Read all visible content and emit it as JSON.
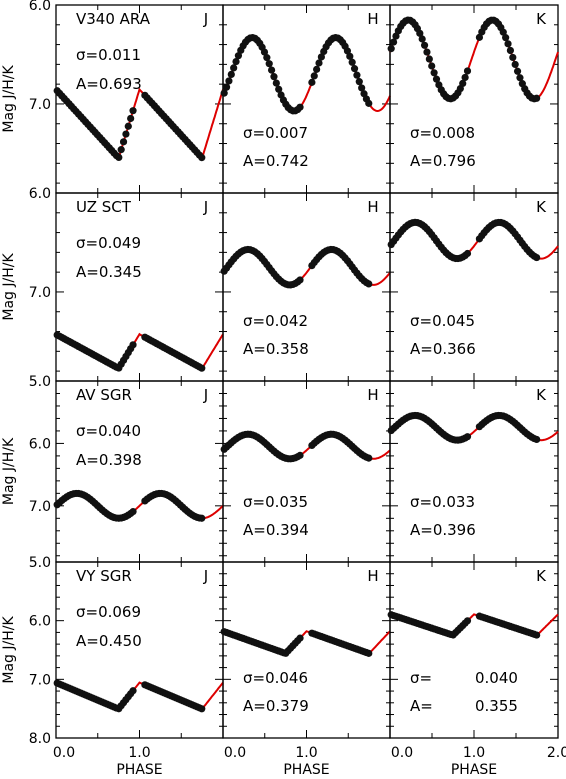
{
  "chart_data": {
    "type": "scatter",
    "layout": {
      "rows": 4,
      "cols": 3
    },
    "xlabel": "PHASE",
    "ylabel": "Mag J/H/K",
    "xlim": [
      0.0,
      2.0
    ],
    "xticks": [
      0.0,
      1.0,
      2.0
    ],
    "x_tick_labels": [
      "0.0",
      "1.0",
      "2.0"
    ],
    "y_axis_inverted": true,
    "fit_color": "#dd0000",
    "point_color": "#111111",
    "rows": [
      {
        "star": "V340 ARA",
        "ylim": [
          6.0,
          7.9
        ],
        "yticks": [
          6.0,
          7.0
        ],
        "y_tick_labels": [
          "6.0",
          "7.0"
        ],
        "panels": [
          {
            "band": "J",
            "sigma": "σ=0.011",
            "amp": "A=0.693",
            "curve": {
              "mean": 7.2,
              "amp": 0.693,
              "shape": "saw",
              "phase0": 0.0
            }
          },
          {
            "band": "H",
            "sigma": "σ=0.007",
            "amp": "A=0.742",
            "curve": {
              "mean": 6.7,
              "amp": 0.742,
              "shape": "sine",
              "phase0": 0.35
            }
          },
          {
            "band": "K",
            "sigma": "σ=0.008",
            "amp": "A=0.796",
            "curve": {
              "mean": 6.55,
              "amp": 0.796,
              "shape": "sine",
              "phase0": 0.22
            }
          }
        ]
      },
      {
        "star": "UZ SCT",
        "ylim": [
          6.0,
          7.9
        ],
        "yticks": [
          6.0,
          7.0
        ],
        "y_tick_labels": [
          "6.0",
          "7.0"
        ],
        "panels": [
          {
            "band": "J",
            "sigma": "σ=0.049",
            "amp": "A=0.345",
            "curve": {
              "mean": 7.6,
              "amp": 0.345,
              "shape": "saw",
              "phase0": 0.0
            }
          },
          {
            "band": "H",
            "sigma": "σ=0.042",
            "amp": "A=0.358",
            "curve": {
              "mean": 6.75,
              "amp": 0.358,
              "shape": "sine",
              "phase0": 0.3
            }
          },
          {
            "band": "K",
            "sigma": "σ=0.045",
            "amp": "A=0.366",
            "curve": {
              "mean": 6.48,
              "amp": 0.366,
              "shape": "sine",
              "phase0": 0.3
            }
          }
        ]
      },
      {
        "star": "AV SGR",
        "ylim": [
          5.0,
          7.9
        ],
        "yticks": [
          5.0,
          6.0,
          7.0
        ],
        "y_tick_labels": [
          "5.0",
          "6.0",
          "7.0"
        ],
        "panels": [
          {
            "band": "J",
            "sigma": "σ=0.040",
            "amp": "A=0.398",
            "curve": {
              "mean": 7.0,
              "amp": 0.398,
              "shape": "sine",
              "phase0": 0.25
            }
          },
          {
            "band": "H",
            "sigma": "σ=0.035",
            "amp": "A=0.394",
            "curve": {
              "mean": 6.05,
              "amp": 0.394,
              "shape": "sine",
              "phase0": 0.3
            }
          },
          {
            "band": "K",
            "sigma": "σ=0.033",
            "amp": "A=0.396",
            "curve": {
              "mean": 5.75,
              "amp": 0.396,
              "shape": "sine",
              "phase0": 0.3
            }
          }
        ]
      },
      {
        "star": "VY SGR",
        "ylim": [
          5.0,
          8.0
        ],
        "yticks": [
          5.0,
          6.0,
          7.0,
          8.0
        ],
        "y_tick_labels": [
          "5.0",
          "6.0",
          "7.0",
          "8.0"
        ],
        "panels": [
          {
            "band": "J",
            "sigma": "σ=0.069",
            "amp": "A=0.450",
            "curve": {
              "mean": 7.28,
              "amp": 0.45,
              "shape": "saw",
              "phase0": 0.0
            }
          },
          {
            "band": "H",
            "sigma": "σ=0.046",
            "amp": "A=0.379",
            "curve": {
              "mean": 6.37,
              "amp": 0.379,
              "shape": "saw",
              "phase0": 0.0
            }
          },
          {
            "band": "K",
            "sigma": "σ=",
            "sigma_value": "0.040",
            "amp": "A=",
            "amp_value": "0.355",
            "curve": {
              "mean": 6.07,
              "amp": 0.355,
              "shape": "saw",
              "phase0": 0.0
            }
          }
        ]
      }
    ]
  }
}
